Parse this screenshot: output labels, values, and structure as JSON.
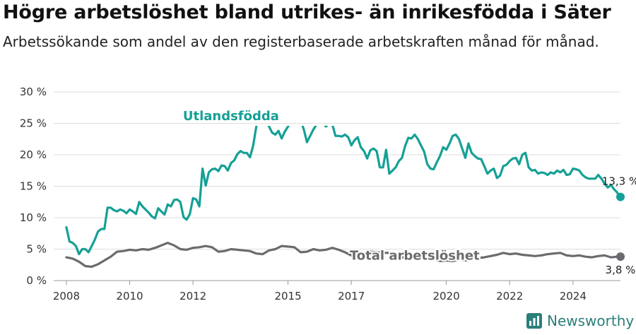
{
  "title": "Högre arbetslöshet bland utrikes- än inrikesfödda i Säter",
  "subtitle": "Arbetssökande som andel av den registerbaserade arbetskraften månad för månad.",
  "brand": {
    "name": "Newsworthy",
    "icon": "newsworthy-logo-icon",
    "color": "#2a7f7a"
  },
  "chart_data": {
    "type": "line",
    "title": "Högre arbetslöshet bland utrikes- än inrikesfödda i Säter",
    "subtitle": "Arbetssökande som andel av den registerbaserade arbetskraften månad för månad.",
    "xlabel": "",
    "ylabel": "",
    "xlim": [
      2007.6,
      2025.5
    ],
    "ylim": [
      0,
      30
    ],
    "x_ticks": [
      2008,
      2010,
      2012,
      2015,
      2017,
      2020,
      2022,
      2024
    ],
    "y_ticks": [
      0,
      5,
      10,
      15,
      20,
      25,
      30
    ],
    "y_tick_labels": [
      "0 %",
      "5 %",
      "10 %",
      "15 %",
      "20 %",
      "25 %",
      "30 %"
    ],
    "grid": "horizontal",
    "series": [
      {
        "name": "Utlandsfödda",
        "color": "#15a096",
        "end_label": "13,3 %",
        "points": [
          [
            2008.0,
            8.5
          ],
          [
            2008.1,
            6.2
          ],
          [
            2008.2,
            6.0
          ],
          [
            2008.3,
            5.5
          ],
          [
            2008.4,
            4.2
          ],
          [
            2008.5,
            5.0
          ],
          [
            2008.6,
            5.0
          ],
          [
            2008.7,
            4.5
          ],
          [
            2008.8,
            5.5
          ],
          [
            2008.9,
            6.5
          ],
          [
            2009.0,
            7.8
          ],
          [
            2009.1,
            8.2
          ],
          [
            2009.2,
            8.2
          ],
          [
            2009.3,
            11.6
          ],
          [
            2009.4,
            11.6
          ],
          [
            2009.5,
            11.2
          ],
          [
            2009.6,
            11.0
          ],
          [
            2009.7,
            11.3
          ],
          [
            2009.8,
            11.1
          ],
          [
            2009.9,
            10.7
          ],
          [
            2010.0,
            11.3
          ],
          [
            2010.1,
            11.0
          ],
          [
            2010.2,
            10.6
          ],
          [
            2010.3,
            12.5
          ],
          [
            2010.4,
            11.8
          ],
          [
            2010.5,
            11.3
          ],
          [
            2010.6,
            10.8
          ],
          [
            2010.7,
            10.2
          ],
          [
            2010.8,
            9.9
          ],
          [
            2010.9,
            11.5
          ],
          [
            2011.0,
            11.0
          ],
          [
            2011.1,
            10.5
          ],
          [
            2011.2,
            12.1
          ],
          [
            2011.3,
            11.8
          ],
          [
            2011.4,
            12.8
          ],
          [
            2011.5,
            12.9
          ],
          [
            2011.6,
            12.5
          ],
          [
            2011.7,
            10.1
          ],
          [
            2011.8,
            9.7
          ],
          [
            2011.9,
            10.6
          ],
          [
            2012.0,
            13.1
          ],
          [
            2012.1,
            12.9
          ],
          [
            2012.2,
            11.8
          ],
          [
            2012.3,
            17.8
          ],
          [
            2012.4,
            15.1
          ],
          [
            2012.5,
            17.2
          ],
          [
            2012.6,
            17.7
          ],
          [
            2012.7,
            17.8
          ],
          [
            2012.8,
            17.4
          ],
          [
            2012.9,
            18.3
          ],
          [
            2013.0,
            18.2
          ],
          [
            2013.1,
            17.5
          ],
          [
            2013.2,
            18.7
          ],
          [
            2013.3,
            19.1
          ],
          [
            2013.4,
            20.1
          ],
          [
            2013.5,
            20.6
          ],
          [
            2013.6,
            20.3
          ],
          [
            2013.7,
            20.3
          ],
          [
            2013.8,
            19.6
          ],
          [
            2013.9,
            21.5
          ],
          [
            2014.0,
            24.5
          ],
          [
            2014.1,
            26.0
          ],
          [
            2014.2,
            26.5
          ],
          [
            2014.3,
            26.0
          ],
          [
            2014.4,
            24.5
          ],
          [
            2014.5,
            23.5
          ],
          [
            2014.6,
            23.2
          ],
          [
            2014.7,
            23.8
          ],
          [
            2014.8,
            22.6
          ],
          [
            2014.9,
            23.7
          ],
          [
            2015.0,
            24.5
          ],
          [
            2015.1,
            25.5
          ],
          [
            2015.2,
            26.0
          ],
          [
            2015.3,
            26.5
          ],
          [
            2015.4,
            25.5
          ],
          [
            2015.5,
            24.0
          ],
          [
            2015.6,
            22.0
          ],
          [
            2015.7,
            23.0
          ],
          [
            2015.8,
            24.0
          ],
          [
            2015.9,
            24.8
          ],
          [
            2016.0,
            25.5
          ],
          [
            2016.1,
            25.0
          ],
          [
            2016.2,
            24.5
          ],
          [
            2016.3,
            25.0
          ],
          [
            2016.4,
            24.8
          ],
          [
            2016.5,
            23.0
          ],
          [
            2016.6,
            23.0
          ],
          [
            2016.7,
            22.9
          ],
          [
            2016.8,
            23.2
          ],
          [
            2016.9,
            22.8
          ],
          [
            2017.0,
            21.5
          ],
          [
            2017.1,
            22.3
          ],
          [
            2017.2,
            22.8
          ],
          [
            2017.3,
            21.2
          ],
          [
            2017.4,
            20.6
          ],
          [
            2017.5,
            19.4
          ],
          [
            2017.6,
            20.7
          ],
          [
            2017.7,
            21.0
          ],
          [
            2017.8,
            20.6
          ],
          [
            2017.9,
            18.0
          ],
          [
            2018.0,
            18.0
          ],
          [
            2018.1,
            20.8
          ],
          [
            2018.2,
            17.0
          ],
          [
            2018.3,
            17.5
          ],
          [
            2018.4,
            18.0
          ],
          [
            2018.5,
            19.0
          ],
          [
            2018.6,
            19.5
          ],
          [
            2018.7,
            21.4
          ],
          [
            2018.8,
            22.7
          ],
          [
            2018.9,
            22.6
          ],
          [
            2019.0,
            23.2
          ],
          [
            2019.1,
            22.5
          ],
          [
            2019.2,
            21.5
          ],
          [
            2019.3,
            20.5
          ],
          [
            2019.4,
            18.5
          ],
          [
            2019.5,
            17.8
          ],
          [
            2019.6,
            17.7
          ],
          [
            2019.7,
            18.8
          ],
          [
            2019.8,
            19.8
          ],
          [
            2019.9,
            21.2
          ],
          [
            2020.0,
            20.8
          ],
          [
            2020.1,
            21.8
          ],
          [
            2020.2,
            23.0
          ],
          [
            2020.3,
            23.2
          ],
          [
            2020.4,
            22.5
          ],
          [
            2020.5,
            21.0
          ],
          [
            2020.6,
            19.5
          ],
          [
            2020.7,
            21.8
          ],
          [
            2020.8,
            20.3
          ],
          [
            2020.9,
            19.8
          ],
          [
            2021.0,
            19.4
          ],
          [
            2021.1,
            19.3
          ],
          [
            2021.2,
            18.2
          ],
          [
            2021.3,
            17.0
          ],
          [
            2021.4,
            17.5
          ],
          [
            2021.5,
            17.8
          ],
          [
            2021.6,
            16.3
          ],
          [
            2021.7,
            16.7
          ],
          [
            2021.8,
            18.2
          ],
          [
            2021.9,
            18.4
          ],
          [
            2022.0,
            19.0
          ],
          [
            2022.1,
            19.4
          ],
          [
            2022.2,
            19.5
          ],
          [
            2022.3,
            18.5
          ],
          [
            2022.4,
            20.0
          ],
          [
            2022.5,
            20.3
          ],
          [
            2022.6,
            18.0
          ],
          [
            2022.7,
            17.5
          ],
          [
            2022.8,
            17.6
          ],
          [
            2022.9,
            17.0
          ],
          [
            2023.0,
            17.2
          ],
          [
            2023.1,
            17.1
          ],
          [
            2023.2,
            16.8
          ],
          [
            2023.3,
            17.2
          ],
          [
            2023.4,
            17.0
          ],
          [
            2023.5,
            17.5
          ],
          [
            2023.6,
            17.2
          ],
          [
            2023.7,
            17.6
          ],
          [
            2023.8,
            16.8
          ],
          [
            2023.9,
            16.9
          ],
          [
            2024.0,
            17.8
          ],
          [
            2024.1,
            17.7
          ],
          [
            2024.2,
            17.5
          ],
          [
            2024.3,
            16.8
          ],
          [
            2024.4,
            16.4
          ],
          [
            2024.5,
            16.2
          ],
          [
            2024.6,
            16.2
          ],
          [
            2024.7,
            16.2
          ],
          [
            2024.8,
            16.8
          ],
          [
            2024.9,
            16.2
          ],
          [
            2025.0,
            15.4
          ],
          [
            2025.1,
            14.8
          ],
          [
            2025.2,
            15.2
          ],
          [
            2025.3,
            14.5
          ],
          [
            2025.4,
            14.0
          ],
          [
            2025.45,
            13.4
          ],
          [
            2025.5,
            13.3
          ]
        ]
      },
      {
        "name": "Total arbetslöshet",
        "color": "#6b6b6f",
        "end_label": "3,8 %",
        "points": [
          [
            2008.0,
            3.7
          ],
          [
            2008.2,
            3.5
          ],
          [
            2008.4,
            3.0
          ],
          [
            2008.6,
            2.3
          ],
          [
            2008.8,
            2.2
          ],
          [
            2009.0,
            2.6
          ],
          [
            2009.2,
            3.2
          ],
          [
            2009.4,
            3.8
          ],
          [
            2009.6,
            4.6
          ],
          [
            2009.8,
            4.7
          ],
          [
            2010.0,
            4.9
          ],
          [
            2010.2,
            4.8
          ],
          [
            2010.4,
            5.0
          ],
          [
            2010.6,
            4.9
          ],
          [
            2010.8,
            5.2
          ],
          [
            2011.0,
            5.6
          ],
          [
            2011.2,
            6.0
          ],
          [
            2011.4,
            5.6
          ],
          [
            2011.6,
            5.0
          ],
          [
            2011.8,
            4.9
          ],
          [
            2012.0,
            5.2
          ],
          [
            2012.2,
            5.3
          ],
          [
            2012.4,
            5.5
          ],
          [
            2012.6,
            5.3
          ],
          [
            2012.8,
            4.6
          ],
          [
            2013.0,
            4.7
          ],
          [
            2013.2,
            5.0
          ],
          [
            2013.4,
            4.9
          ],
          [
            2013.6,
            4.8
          ],
          [
            2013.8,
            4.7
          ],
          [
            2014.0,
            4.3
          ],
          [
            2014.2,
            4.2
          ],
          [
            2014.4,
            4.8
          ],
          [
            2014.6,
            5.0
          ],
          [
            2014.8,
            5.5
          ],
          [
            2015.0,
            5.4
          ],
          [
            2015.2,
            5.3
          ],
          [
            2015.4,
            4.5
          ],
          [
            2015.6,
            4.6
          ],
          [
            2015.8,
            5.0
          ],
          [
            2016.0,
            4.8
          ],
          [
            2016.2,
            4.9
          ],
          [
            2016.4,
            5.2
          ],
          [
            2016.6,
            4.9
          ],
          [
            2016.8,
            4.5
          ],
          [
            2017.0,
            4.0
          ],
          [
            2017.2,
            3.9
          ],
          [
            2017.4,
            4.4
          ],
          [
            2017.6,
            4.6
          ],
          [
            2017.8,
            4.5
          ],
          [
            2018.0,
            4.4
          ],
          [
            2018.2,
            4.4
          ],
          [
            2018.4,
            4.1
          ],
          [
            2018.6,
            3.7
          ],
          [
            2018.8,
            3.6
          ],
          [
            2019.0,
            4.0
          ],
          [
            2019.2,
            4.1
          ],
          [
            2019.4,
            4.2
          ],
          [
            2019.6,
            3.4
          ],
          [
            2019.8,
            3.1
          ],
          [
            2020.0,
            3.2
          ],
          [
            2020.2,
            3.1
          ],
          [
            2020.4,
            3.3
          ],
          [
            2020.6,
            3.2
          ],
          [
            2020.8,
            3.4
          ],
          [
            2021.0,
            3.6
          ],
          [
            2021.2,
            3.7
          ],
          [
            2021.4,
            3.9
          ],
          [
            2021.6,
            4.1
          ],
          [
            2021.8,
            4.4
          ],
          [
            2022.0,
            4.2
          ],
          [
            2022.2,
            4.3
          ],
          [
            2022.4,
            4.1
          ],
          [
            2022.6,
            4.0
          ],
          [
            2022.8,
            3.9
          ],
          [
            2023.0,
            4.0
          ],
          [
            2023.2,
            4.2
          ],
          [
            2023.4,
            4.3
          ],
          [
            2023.6,
            4.4
          ],
          [
            2023.8,
            4.0
          ],
          [
            2024.0,
            3.9
          ],
          [
            2024.2,
            4.0
          ],
          [
            2024.4,
            3.8
          ],
          [
            2024.6,
            3.7
          ],
          [
            2024.8,
            3.9
          ],
          [
            2025.0,
            4.0
          ],
          [
            2025.2,
            3.7
          ],
          [
            2025.4,
            3.8
          ],
          [
            2025.5,
            3.8
          ]
        ]
      }
    ],
    "annotations": [
      {
        "text": "Utlandsfödda",
        "series": "Utlandsfödda",
        "x": 2013.2,
        "y": 25.5
      },
      {
        "text": "Total arbetslöshet",
        "series": "Total arbetslöshet",
        "x": 2019.0,
        "y": 3.3
      }
    ]
  }
}
